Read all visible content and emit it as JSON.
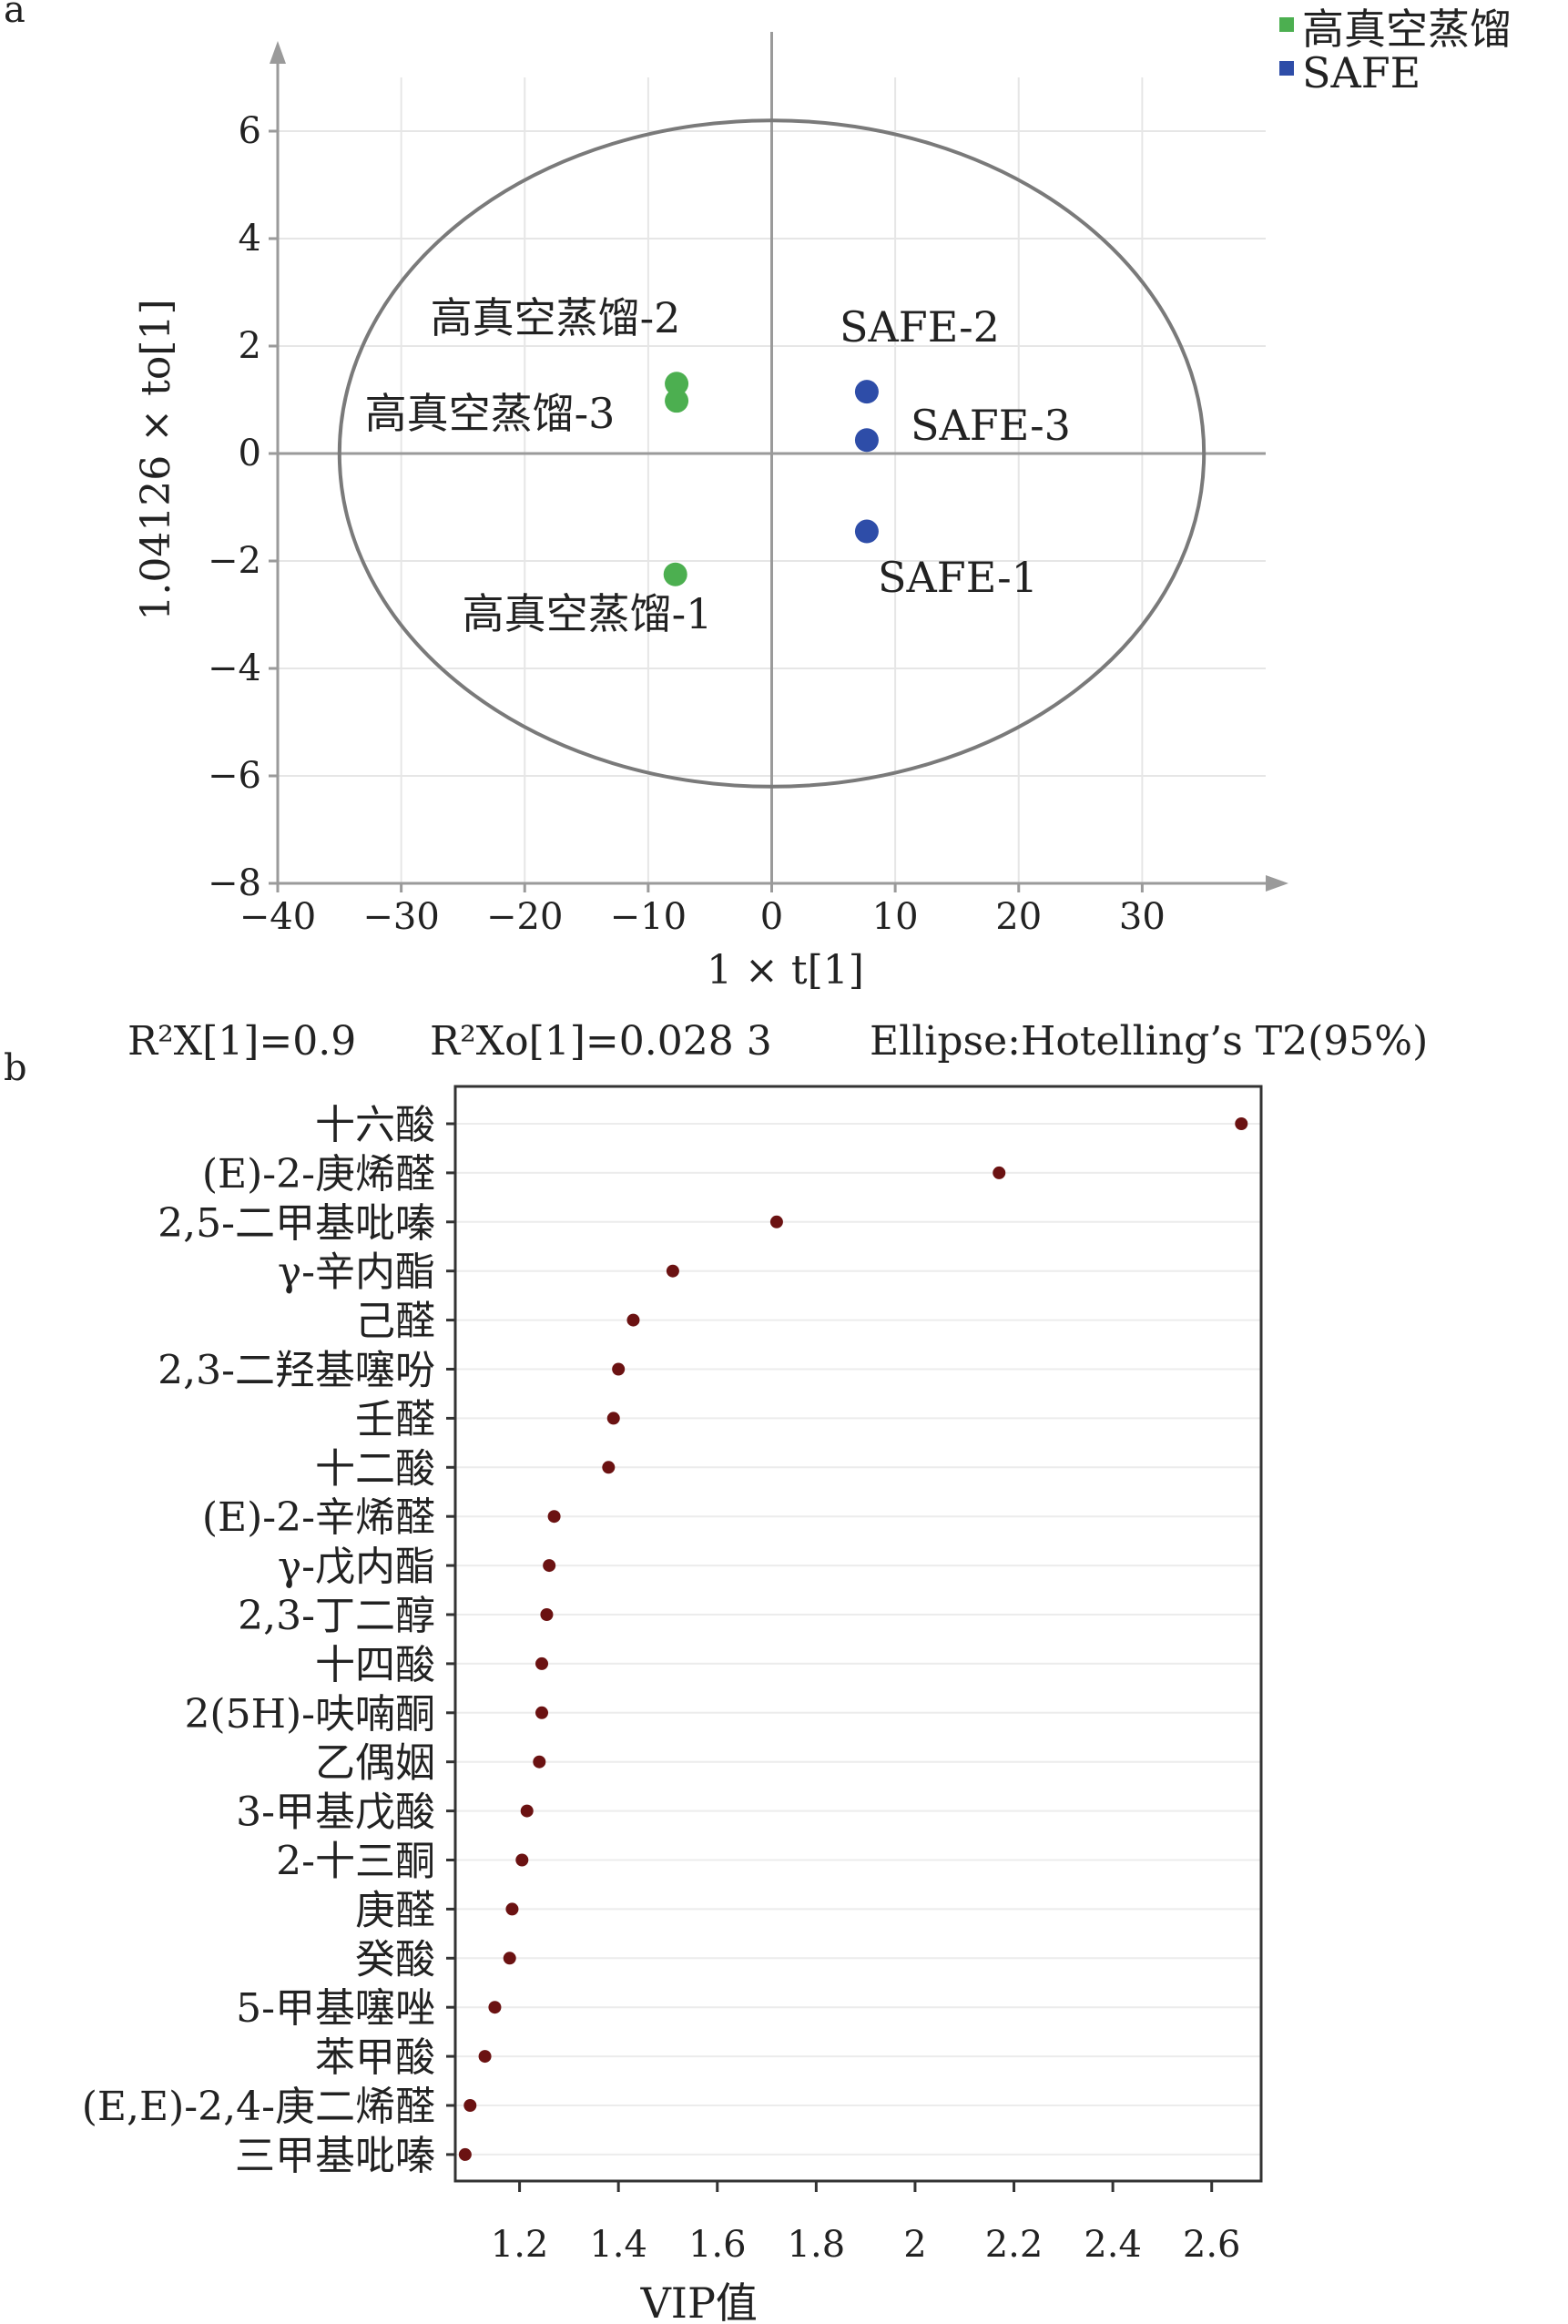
{
  "chart_data": [
    {
      "panel_label": "a",
      "type": "scatter",
      "xlabel": "1 × t[1]",
      "ylabel": "1.04126 × to[1]",
      "xlim": [
        -40,
        40
      ],
      "ylim": [
        -8,
        7
      ],
      "xticks": [
        -40,
        -30,
        -20,
        -10,
        0,
        10,
        20,
        30
      ],
      "yticks": [
        -8,
        -6,
        -4,
        -2,
        0,
        2,
        4,
        6
      ],
      "xtick_labels": [
        "−40",
        "−30",
        "−20",
        "−10",
        "0",
        "10",
        "20",
        "30"
      ],
      "ytick_labels": [
        "−8",
        "−6",
        "−4",
        "−2",
        "0",
        "2",
        "4",
        "6"
      ],
      "grid": true,
      "legend_position": "top-right",
      "ellipse": {
        "center": [
          0,
          0
        ],
        "rx": 35,
        "ry": 6.2
      },
      "series": [
        {
          "name": "高真空蒸馏",
          "color": "#4caf50",
          "points": [
            {
              "label": "高真空蒸馏-1",
              "x": -7.8,
              "y": -2.25
            },
            {
              "label": "高真空蒸馏-2",
              "x": -7.7,
              "y": 1.3
            },
            {
              "label": "高真空蒸馏-3",
              "x": -7.7,
              "y": 0.98
            }
          ]
        },
        {
          "name": "SAFE",
          "color": "#2e4da8",
          "points": [
            {
              "label": "SAFE-1",
              "x": 7.7,
              "y": -1.45
            },
            {
              "label": "SAFE-2",
              "x": 7.7,
              "y": 1.15
            },
            {
              "label": "SAFE-3",
              "x": 7.7,
              "y": 0.25
            }
          ]
        }
      ],
      "footer": {
        "r2x": "R²X[1]=0.9",
        "r2xo": "R²Xo[1]=0.028 3",
        "ellipse": "Ellipse:Hotelling’s T2(95%)"
      }
    },
    {
      "panel_label": "b",
      "type": "scatter",
      "xlabel": "VIP值",
      "ylabel": "",
      "xlim": [
        1.07,
        2.7
      ],
      "xticks": [
        1.2,
        1.4,
        1.6,
        1.8,
        2.0,
        2.2,
        2.4,
        2.6
      ],
      "xtick_labels": [
        "1.2",
        "1.4",
        "1.6",
        "1.8",
        "2",
        "2.2",
        "2.4",
        "2.6"
      ],
      "grid": true,
      "point_color": "#6b1212",
      "categories": [
        "十六酸",
        "(E)-2-庚烯醛",
        "2,5-二甲基吡嗪",
        "γ-辛内酯",
        "己醛",
        "2,3-二羟基噻吩",
        "壬醛",
        "十二酸",
        "(E)-2-辛烯醛",
        "γ-戊内酯",
        "2,3-丁二醇",
        "十四酸",
        "2(5H)-呋喃酮",
        "乙偶姻",
        "3-甲基戊酸",
        "2-十三酮",
        "庚醛",
        "癸酸",
        "5-甲基噻唑",
        "苯甲酸",
        "(E,E)-2,4-庚二烯醛",
        "三甲基吡嗪"
      ],
      "values": [
        2.66,
        2.17,
        1.72,
        1.51,
        1.43,
        1.4,
        1.39,
        1.38,
        1.27,
        1.26,
        1.255,
        1.245,
        1.245,
        1.24,
        1.215,
        1.205,
        1.185,
        1.18,
        1.15,
        1.13,
        1.1,
        1.09
      ]
    }
  ]
}
